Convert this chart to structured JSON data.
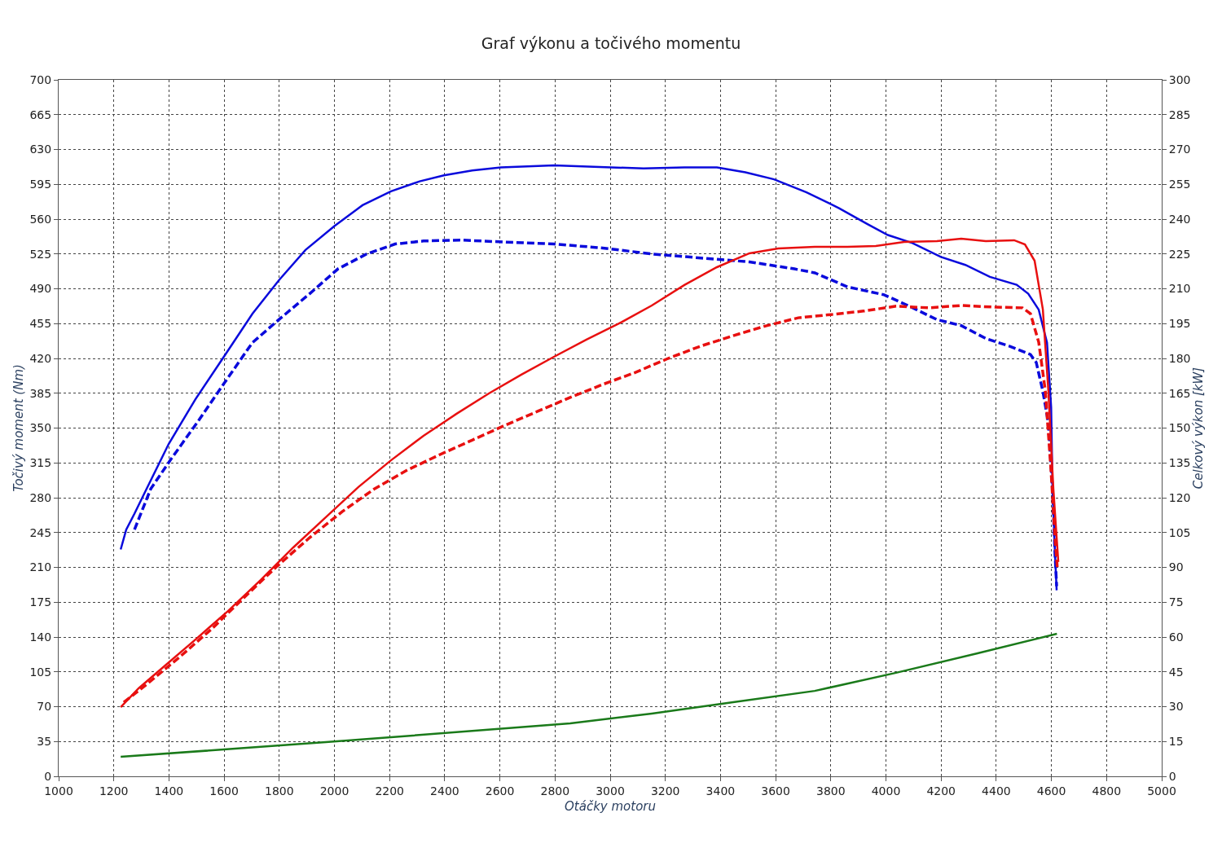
{
  "chart_data": {
    "type": "line",
    "title": "Graf výkonu a točivého momentu",
    "xlabel": "Otáčky motoru",
    "ylabel": "Točivý moment (Nm)",
    "y2label": "Celkový výkon [kW]",
    "xlim": [
      1000,
      5000
    ],
    "xticks": [
      1000,
      1200,
      1400,
      1600,
      1800,
      2000,
      2200,
      2400,
      2600,
      2800,
      3000,
      3200,
      3400,
      3600,
      3800,
      4000,
      4200,
      4400,
      4600,
      4800,
      5000
    ],
    "ylim": [
      0,
      700
    ],
    "yticks": [
      0,
      35,
      70,
      105,
      140,
      175,
      210,
      245,
      280,
      315,
      350,
      385,
      420,
      455,
      490,
      525,
      560,
      595,
      630,
      665,
      700
    ],
    "y2lim": [
      0,
      300
    ],
    "y2ticks": [
      0,
      15,
      30,
      45,
      60,
      75,
      90,
      105,
      120,
      135,
      150,
      165,
      180,
      195,
      210,
      225,
      240,
      255,
      270,
      285,
      300
    ],
    "grid": true,
    "marker": "none",
    "series": [
      {
        "color": "#0a0adc",
        "line_style": "solid",
        "x": [
          1225,
          1245,
          1275,
          1319,
          1399,
          1496,
          1600,
          1703,
          1800,
          1895,
          2000,
          2102,
          2205,
          2309,
          2397,
          2500,
          2604,
          2796,
          3003,
          3121,
          3269,
          3387,
          3490,
          3594,
          3712,
          3830,
          3933,
          4007,
          4096,
          4199,
          4288,
          4377,
          4474,
          4516,
          4554,
          4584,
          4599,
          4604,
          4613,
          4619
        ],
        "values": [
          228,
          248,
          264,
          289,
          334,
          379,
          422,
          465,
          499,
          529,
          553,
          574,
          588,
          598,
          604,
          609,
          612,
          614,
          612,
          611,
          612,
          612,
          607,
          600,
          587,
          571,
          555,
          544,
          536,
          522,
          514,
          502,
          494,
          485,
          469,
          436,
          371,
          289,
          224,
          187
        ]
      },
      {
        "color": "#0a0adc",
        "line_style": "dashed",
        "x": [
          1275,
          1334,
          1408,
          1511,
          1600,
          1703,
          1807,
          1910,
          2013,
          2117,
          2220,
          2323,
          2456,
          2619,
          2796,
          2973,
          3151,
          3328,
          3505,
          3668,
          3742,
          3860,
          3993,
          4081,
          4185,
          4273,
          4362,
          4451,
          4524,
          4545,
          4569,
          4589,
          4604,
          4613,
          4619
        ],
        "values": [
          248,
          289,
          319,
          359,
          395,
          436,
          461,
          485,
          510,
          525,
          535,
          538,
          539,
          537,
          535,
          531,
          525,
          521,
          517,
          510,
          506,
          492,
          484,
          473,
          459,
          453,
          440,
          432,
          424,
          416,
          387,
          355,
          289,
          224,
          191
        ]
      },
      {
        "color": "#e81010",
        "line_style": "solid",
        "axis": "y2",
        "x": [
          1225,
          1290,
          1393,
          1496,
          1614,
          1733,
          1851,
          1969,
          2087,
          2205,
          2323,
          2442,
          2560,
          2678,
          2796,
          2914,
          3033,
          3151,
          3269,
          3387,
          3505,
          3609,
          3742,
          3860,
          3963,
          4066,
          4185,
          4273,
          4362,
          4465,
          4504,
          4539,
          4569,
          4589,
          4607,
          4619,
          4625
        ],
        "values": [
          29.8,
          37.9,
          48.4,
          58.9,
          71.2,
          84.6,
          98.6,
          111.6,
          124.6,
          136.1,
          146.7,
          156.1,
          164.9,
          173.0,
          180.7,
          188.1,
          195.1,
          202.8,
          211.6,
          219.3,
          225.3,
          227.4,
          228.1,
          228.1,
          228.4,
          230.2,
          230.5,
          231.6,
          230.5,
          230.9,
          229.1,
          222.1,
          201.1,
          166.0,
          123.9,
          102.8,
          92.3
        ]
      },
      {
        "color": "#e81010",
        "line_style": "dashed",
        "axis": "y2",
        "x": [
          1236,
          1319,
          1437,
          1555,
          1674,
          1792,
          1910,
          2028,
          2146,
          2264,
          2383,
          2501,
          2619,
          2737,
          2855,
          2973,
          3092,
          3210,
          3328,
          3446,
          3564,
          3682,
          3801,
          3919,
          4037,
          4155,
          4273,
          4391,
          4495,
          4524,
          4554,
          4578,
          4599,
          4613,
          4622
        ],
        "values": [
          31.9,
          39.6,
          51.2,
          63.5,
          77.2,
          90.5,
          102.8,
          114.0,
          123.9,
          131.9,
          138.6,
          144.9,
          151.2,
          157.2,
          163.2,
          168.8,
          174.0,
          180.0,
          185.3,
          189.8,
          194.0,
          197.5,
          198.9,
          200.4,
          202.5,
          201.8,
          202.8,
          202.1,
          201.8,
          199.3,
          187.0,
          166.0,
          130.9,
          102.8,
          88.8
        ]
      },
      {
        "color": "#1a7a1a",
        "line_style": "solid",
        "axis": "y2",
        "x": [
          1225,
          1969,
          2855,
          3151,
          3446,
          3742,
          4037,
          4332,
          4620
        ],
        "values": [
          8.4,
          14.7,
          22.8,
          27.0,
          31.9,
          36.8,
          44.6,
          53.0,
          61.4
        ]
      }
    ]
  }
}
